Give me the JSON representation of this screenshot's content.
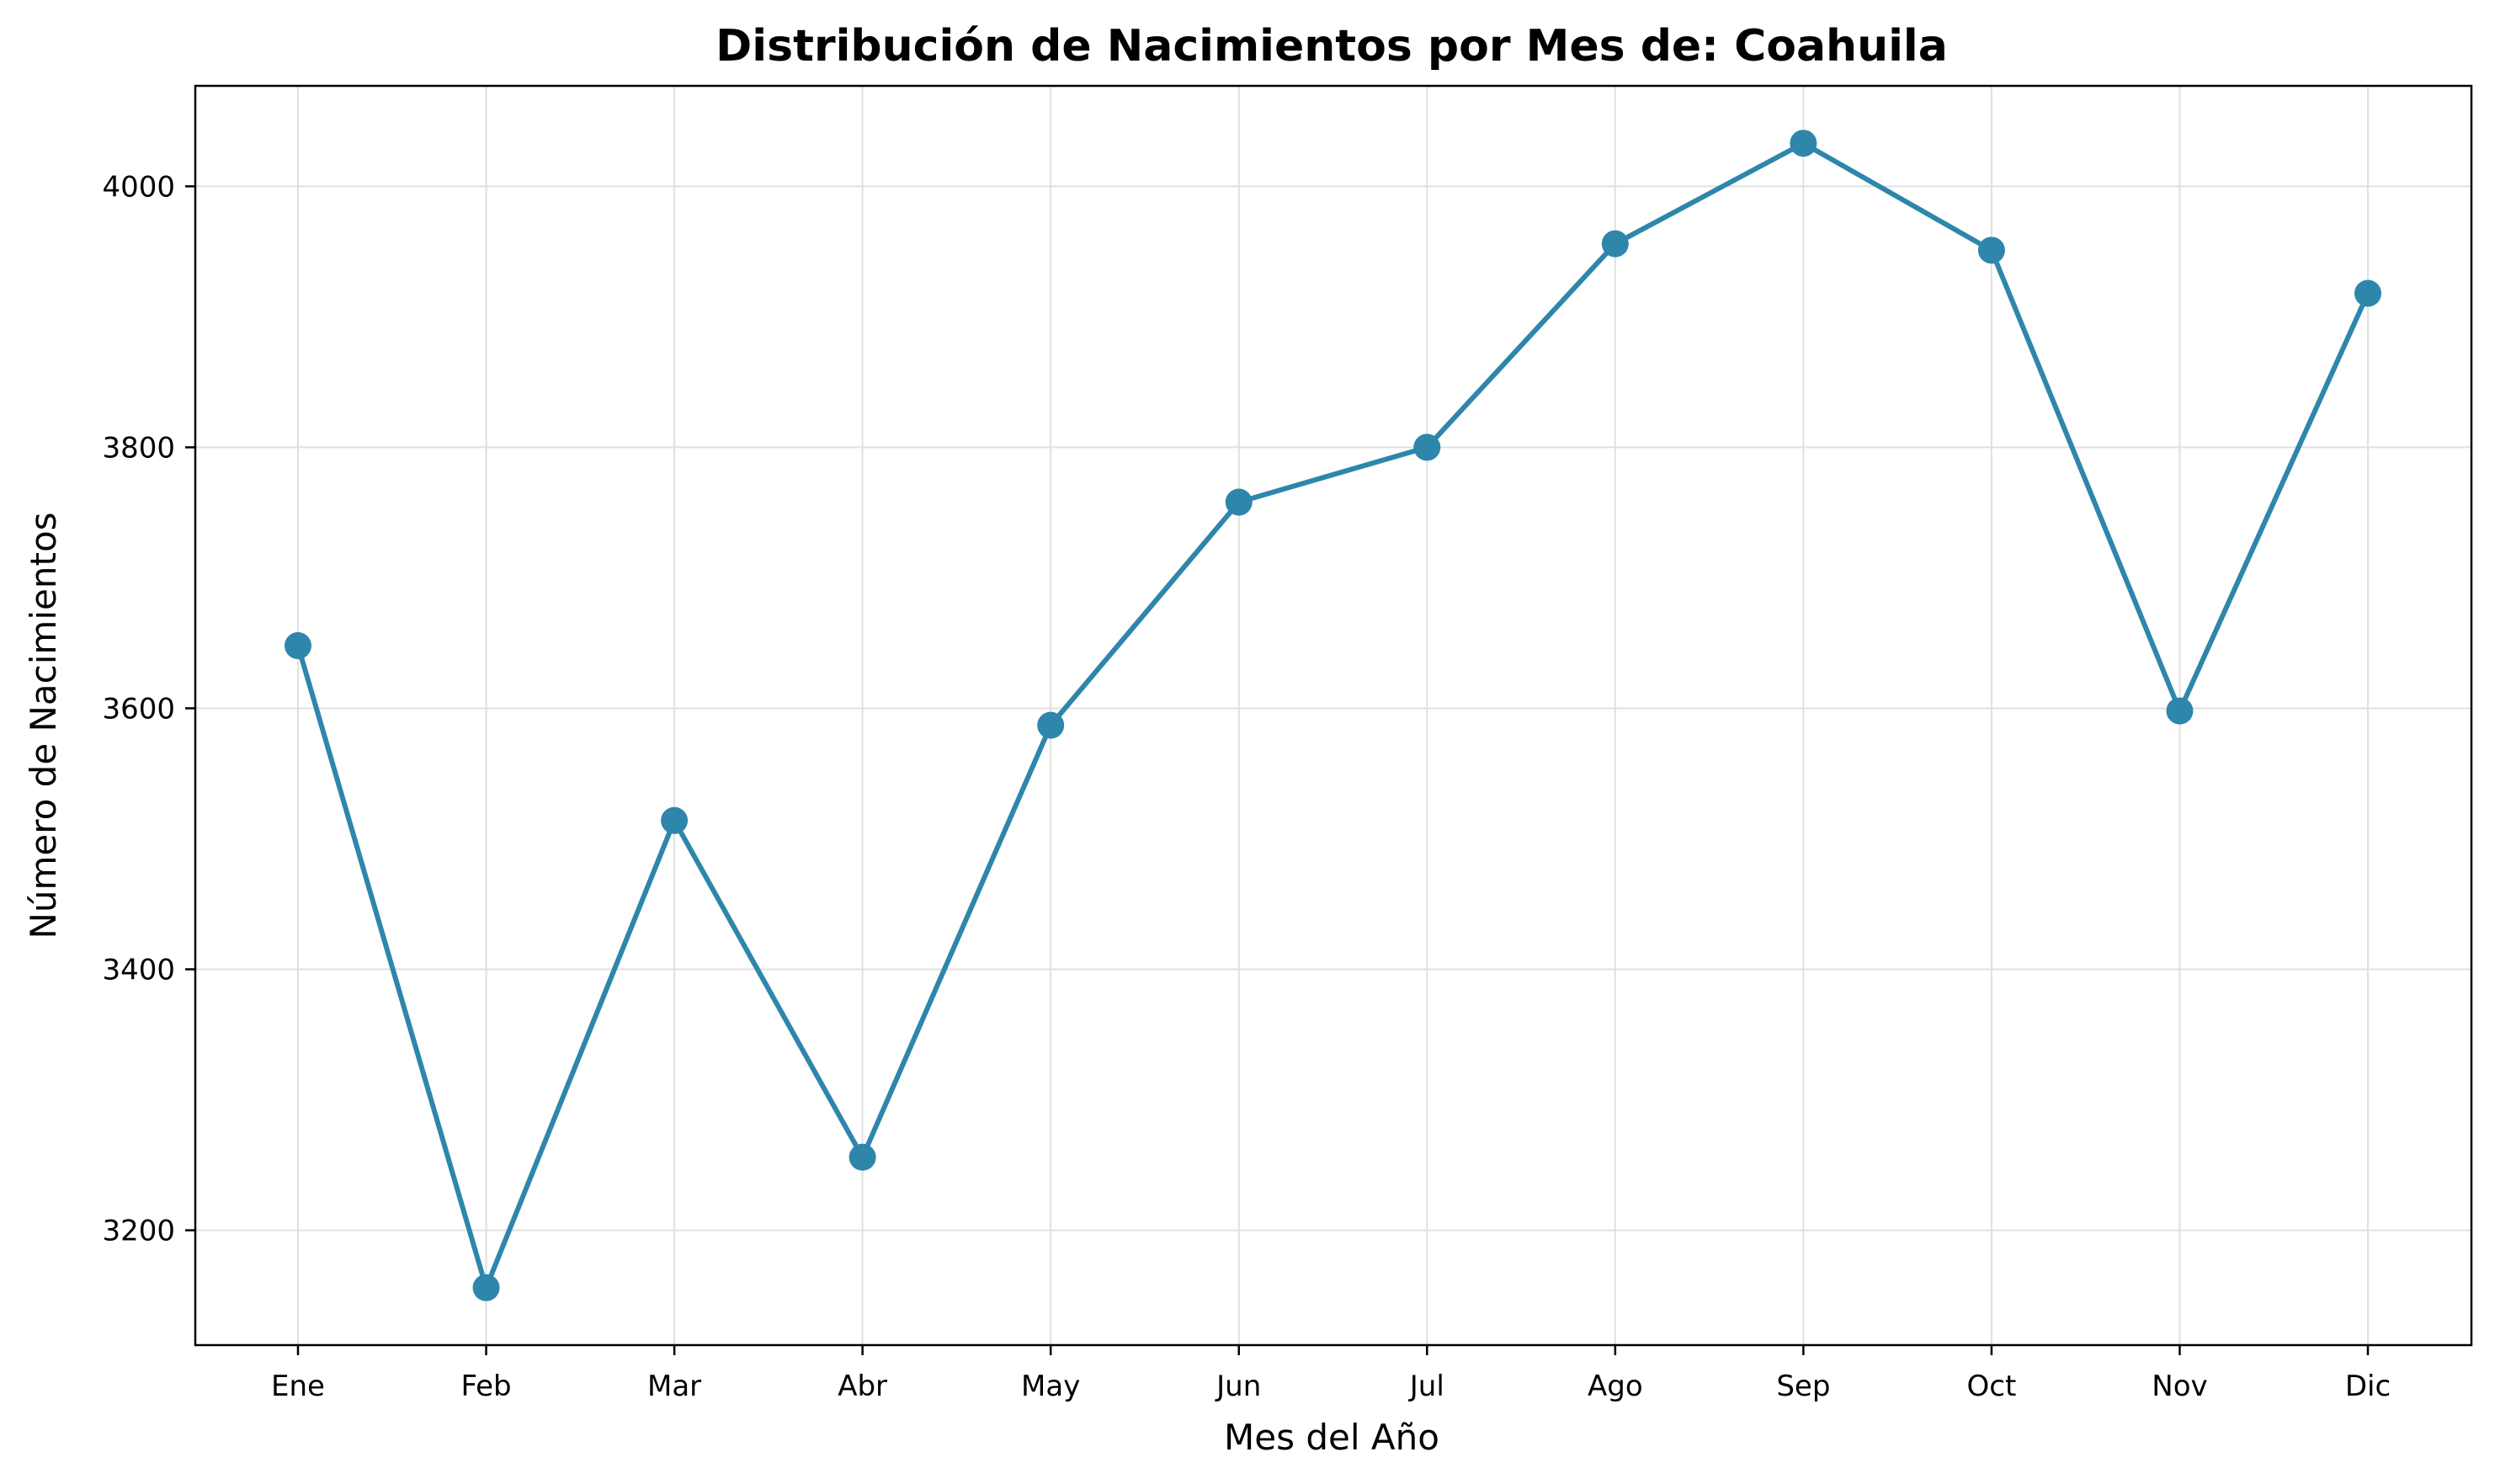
{
  "colors": {
    "line": "#2e86ab",
    "grid": "#e0e0e0",
    "axis": "#000000"
  },
  "chart_data": {
    "type": "line",
    "title": "Distribución de Nacimientos por Mes de: Coahuila",
    "xlabel": "Mes del Año",
    "ylabel": "Número de Nacimientos",
    "categories": [
      "Ene",
      "Feb",
      "Mar",
      "Abr",
      "May",
      "Jun",
      "Jul",
      "Ago",
      "Sep",
      "Oct",
      "Nov",
      "Dic"
    ],
    "series": [
      {
        "values": [
          3648,
          3156,
          3514,
          3256,
          3587,
          3758,
          3800,
          3956,
          4033,
          3951,
          3598,
          3918
        ],
        "marker": "circle"
      }
    ],
    "yticks": [
      3200,
      3400,
      3600,
      3800,
      4000
    ],
    "ylim": [
      3112,
      4077
    ],
    "grid": true,
    "legend": "none"
  }
}
